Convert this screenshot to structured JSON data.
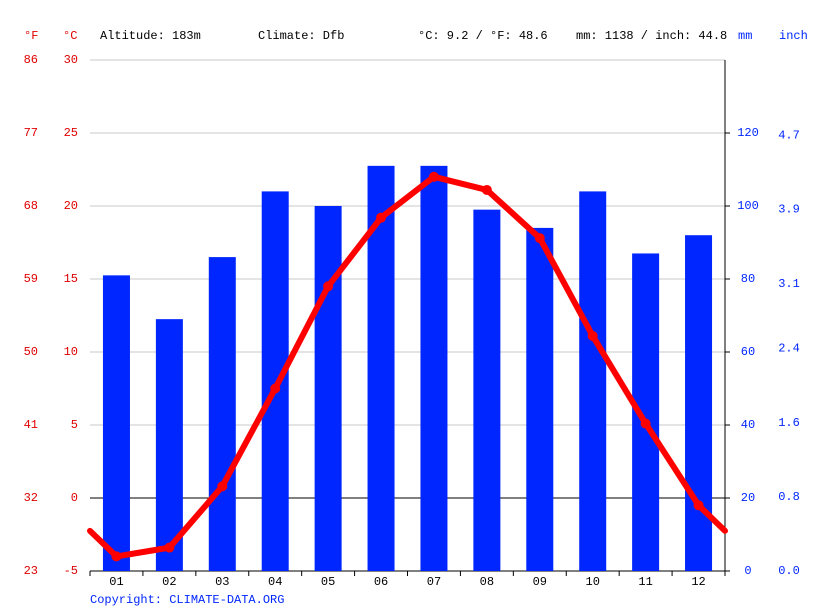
{
  "chart_data": {
    "type": "climate",
    "annotations": [
      "Altitude: 183m",
      "Climate: Dfb",
      "°C: 9.2 / °F: 48.6",
      "mm: 1138 / inch: 44.8"
    ],
    "axis_titles": {
      "f": "°F",
      "c": "°C",
      "mm": "mm",
      "inch": "inch"
    },
    "copyright": "Copyright: CLIMATE-DATA.ORG",
    "categories": [
      "01",
      "02",
      "03",
      "04",
      "05",
      "06",
      "07",
      "08",
      "09",
      "10",
      "11",
      "12"
    ],
    "series": [
      {
        "type": "bar",
        "color": "#0026ff",
        "axis": "y2",
        "values": [
          81,
          69,
          86,
          104,
          100,
          111,
          111,
          99,
          94,
          104,
          87,
          92
        ]
      },
      {
        "type": "line",
        "color": "#ff0000",
        "values": [
          -4.0,
          -3.4,
          0.8,
          7.5,
          14.5,
          19.2,
          22.0,
          21.1,
          17.8,
          11.1,
          5.1,
          -0.5
        ]
      }
    ],
    "ylim": [
      -5,
      30
    ],
    "yticks": [
      -5,
      0,
      5,
      10,
      15,
      20,
      25,
      30
    ],
    "fticks": [
      23,
      32,
      41,
      50,
      59,
      68,
      77,
      86
    ],
    "y2lim": [
      0,
      140
    ],
    "y2ticks": [
      0,
      20,
      40,
      60,
      80,
      100,
      120
    ],
    "inchticks": [
      {
        "value": 0,
        "label": "0.0"
      },
      0.8,
      1.6,
      2.4,
      3.1,
      3.9,
      4.7
    ],
    "grid": true
  }
}
